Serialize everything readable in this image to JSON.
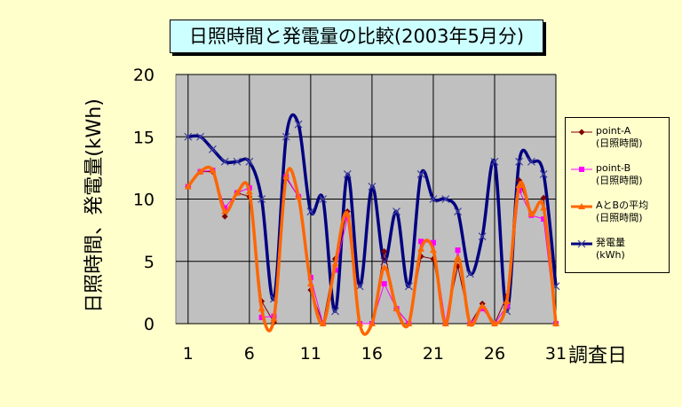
{
  "chart_data": {
    "type": "line",
    "title": "日照時間と発電量の比較(2003年5月分)",
    "ylabel": "日照時間、発電量(kWh)",
    "xlabel": "調査日",
    "ylim": [
      0,
      20
    ],
    "yticks": [
      0,
      5,
      10,
      15,
      20
    ],
    "xlim": [
      0,
      31
    ],
    "xticks": [
      1,
      6,
      11,
      16,
      21,
      26,
      31
    ],
    "grid": true,
    "legend_position": "right",
    "x": [
      1,
      2,
      3,
      4,
      5,
      6,
      7,
      8,
      9,
      10,
      11,
      12,
      13,
      14,
      15,
      16,
      17,
      18,
      19,
      20,
      21,
      22,
      23,
      24,
      25,
      26,
      27,
      28,
      29,
      30,
      31
    ],
    "series": [
      {
        "name": "point-A",
        "sub": "(日照時間)",
        "color": "#800000",
        "marker": "diamond",
        "smooth": false,
        "values": [
          11.0,
          12.2,
          12.2,
          8.6,
          10.5,
          10.2,
          1.8,
          0.1,
          11.7,
          10.2,
          2.7,
          0.0,
          5.2,
          9.0,
          0.0,
          0.0,
          5.8,
          1.2,
          0.0,
          5.4,
          5.2,
          0.0,
          4.6,
          0.0,
          1.6,
          0.0,
          2.2,
          11.5,
          8.8,
          10.1,
          0.0
        ]
      },
      {
        "name": "point-B",
        "sub": "(日照時間)",
        "color": "#ff00ff",
        "marker": "square",
        "smooth": false,
        "values": [
          11.0,
          12.2,
          12.3,
          9.3,
          10.5,
          10.9,
          0.5,
          0.6,
          11.8,
          10.2,
          3.7,
          0.0,
          4.3,
          8.5,
          0.0,
          0.0,
          3.2,
          1.2,
          0.0,
          6.6,
          6.5,
          0.0,
          5.9,
          0.0,
          1.2,
          0.0,
          1.4,
          10.7,
          8.7,
          8.4,
          0.0
        ]
      },
      {
        "name": "AとBの平均",
        "sub": "(日照時間)",
        "color": "#ff6600",
        "marker": "triangle",
        "smooth": true,
        "values": [
          11.0,
          12.2,
          12.3,
          9.0,
          10.5,
          10.6,
          1.2,
          0.4,
          11.8,
          10.2,
          3.2,
          0.0,
          4.8,
          8.8,
          0.0,
          0.0,
          4.5,
          1.2,
          0.0,
          6.0,
          5.9,
          0.0,
          5.3,
          0.0,
          1.4,
          0.0,
          1.8,
          11.1,
          8.8,
          9.3,
          0.0
        ]
      },
      {
        "name": "発電量",
        "sub": "(kWh)",
        "color": "#000080",
        "marker": "x",
        "smooth": true,
        "values": [
          15.0,
          15.0,
          14.0,
          13.0,
          13.0,
          13.0,
          10.0,
          2.0,
          15.0,
          16.0,
          9.0,
          10.0,
          1.0,
          12.0,
          3.0,
          11.0,
          5.0,
          9.0,
          3.0,
          12.0,
          10.0,
          10.0,
          9.0,
          4.0,
          7.0,
          13.0,
          1.0,
          13.0,
          13.0,
          12.0,
          3.0
        ]
      }
    ]
  }
}
